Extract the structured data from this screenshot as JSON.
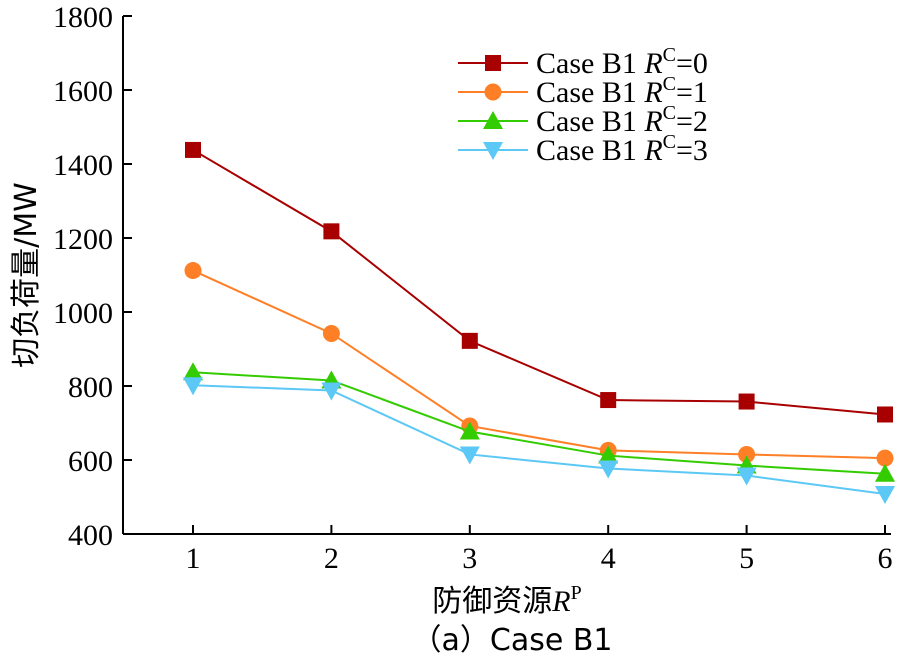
{
  "chart_data": {
    "type": "line",
    "title": "",
    "caption": "（a）Case B1",
    "x": [
      1,
      2,
      3,
      4,
      5,
      6
    ],
    "xlabel": "防御资源",
    "xlabel_var": "R",
    "xlabel_sup": "P",
    "ylabel": "切负荷量/MW",
    "ylim": [
      400,
      1800
    ],
    "xlim": [
      0.5,
      6
    ],
    "yticks": [
      400,
      600,
      800,
      1000,
      1200,
      1400,
      1600,
      1800
    ],
    "xticks": [
      1,
      2,
      3,
      4,
      5,
      6
    ],
    "grid": false,
    "legend_position": "top-right",
    "series": [
      {
        "name": "Case B1 R^C=0",
        "name_prefix": "Case B1 ",
        "name_var": "R",
        "name_sup": "C",
        "name_suffix": "=0",
        "color": "#a80000",
        "marker": "square",
        "values": [
          1438,
          1218,
          922,
          762,
          758,
          723
        ]
      },
      {
        "name": "Case B1 R^C=1",
        "name_prefix": "Case B1 ",
        "name_var": "R",
        "name_sup": "C",
        "name_suffix": "=1",
        "color": "#ff7f27",
        "marker": "circle",
        "values": [
          1112,
          942,
          692,
          626,
          615,
          605
        ]
      },
      {
        "name": "Case B1 R^C=2",
        "name_prefix": "Case B1 ",
        "name_var": "R",
        "name_sup": "C",
        "name_suffix": "=2",
        "color": "#33cc00",
        "marker": "triangle-up",
        "values": [
          837,
          815,
          677,
          612,
          585,
          563
        ]
      },
      {
        "name": "Case B1 R^C=3",
        "name_prefix": "Case B1 ",
        "name_var": "R",
        "name_sup": "C",
        "name_suffix": "=3",
        "color": "#5bc8f5",
        "marker": "triangle-down",
        "values": [
          802,
          788,
          615,
          577,
          558,
          508
        ]
      }
    ]
  }
}
